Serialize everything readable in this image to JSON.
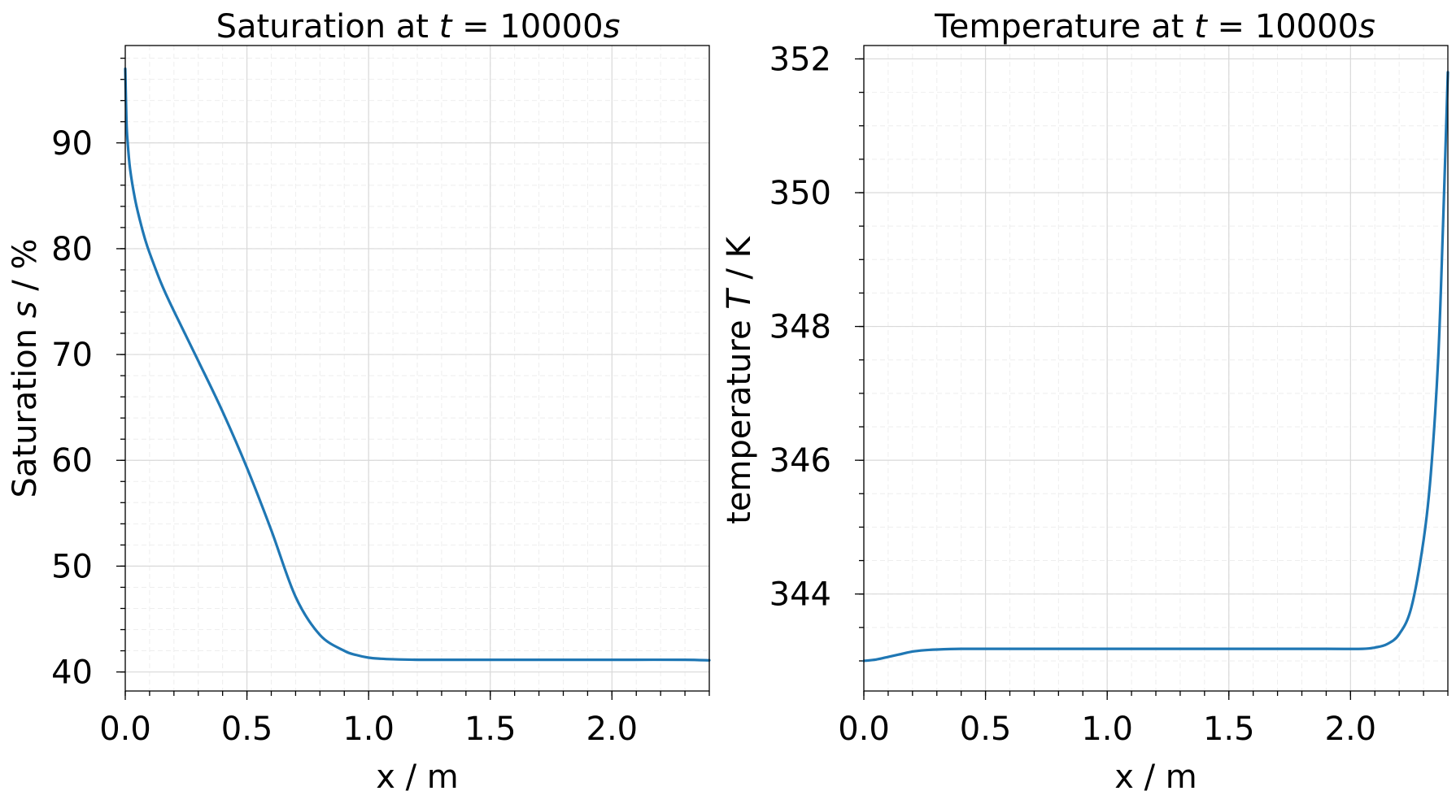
{
  "chart_data": [
    {
      "type": "line",
      "title_prefix": "Saturation at ",
      "title_var": "t",
      "title_suffix": " = 10000",
      "title_unit": "s",
      "xlabel": "x / m",
      "ylabel_prefix": "Saturation ",
      "ylabel_var": "s",
      "ylabel_suffix": " / %",
      "xlim": [
        0,
        2.4
      ],
      "ylim": [
        38.2,
        99.2
      ],
      "xticks": [
        0.0,
        0.5,
        1.0,
        1.5,
        2.0
      ],
      "xtick_labels": [
        "0.0",
        "0.5",
        "1.0",
        "1.5",
        "2.0"
      ],
      "yticks": [
        40,
        50,
        60,
        70,
        80,
        90
      ],
      "ytick_labels": [
        "40",
        "50",
        "60",
        "70",
        "80",
        "90"
      ],
      "x_minor_step": 0.1,
      "y_minor_step": 2,
      "grid": true,
      "series": [
        {
          "name": "saturation",
          "color": "#1f77b4",
          "x": [
            0.0,
            0.005,
            0.01,
            0.02,
            0.04,
            0.06,
            0.08,
            0.1,
            0.15,
            0.2,
            0.3,
            0.4,
            0.5,
            0.6,
            0.7,
            0.8,
            0.9,
            0.95,
            1.0,
            1.05,
            1.1,
            1.2,
            1.3,
            1.5,
            1.7,
            1.9,
            2.1,
            2.3,
            2.4
          ],
          "y": [
            97.0,
            92.0,
            90.0,
            87.5,
            84.7,
            82.7,
            81.0,
            79.6,
            76.6,
            74.1,
            69.4,
            64.6,
            59.3,
            53.4,
            47.1,
            43.5,
            42.0,
            41.6,
            41.35,
            41.25,
            41.2,
            41.15,
            41.15,
            41.15,
            41.15,
            41.15,
            41.15,
            41.15,
            41.1
          ]
        }
      ]
    },
    {
      "type": "line",
      "title_prefix": "Temperature at ",
      "title_var": "t",
      "title_suffix": " = 10000",
      "title_unit": "s",
      "xlabel": "x / m",
      "ylabel_prefix": "temperature ",
      "ylabel_var": "T",
      "ylabel_suffix": " / K",
      "xlim": [
        0,
        2.4
      ],
      "ylim": [
        342.55,
        352.2
      ],
      "xticks": [
        0.0,
        0.5,
        1.0,
        1.5,
        2.0
      ],
      "xtick_labels": [
        "0.0",
        "0.5",
        "1.0",
        "1.5",
        "2.0"
      ],
      "yticks": [
        344,
        346,
        348,
        350,
        352
      ],
      "ytick_labels": [
        "344",
        "346",
        "348",
        "350",
        "352"
      ],
      "x_minor_step": 0.1,
      "y_minor_step": 0.5,
      "grid": true,
      "series": [
        {
          "name": "temperature",
          "color": "#1f77b4",
          "x": [
            0.0,
            0.05,
            0.1,
            0.15,
            0.2,
            0.25,
            0.3,
            0.4,
            0.5,
            0.8,
            1.0,
            1.3,
            1.6,
            1.9,
            2.05,
            2.1,
            2.15,
            2.2,
            2.25,
            2.3,
            2.33,
            2.36,
            2.38,
            2.4
          ],
          "y": [
            343.0,
            343.02,
            343.06,
            343.1,
            343.14,
            343.16,
            343.17,
            343.18,
            343.18,
            343.18,
            343.18,
            343.18,
            343.18,
            343.18,
            343.18,
            343.2,
            343.25,
            343.4,
            343.8,
            344.8,
            345.8,
            347.5,
            349.5,
            351.8
          ]
        }
      ]
    }
  ]
}
